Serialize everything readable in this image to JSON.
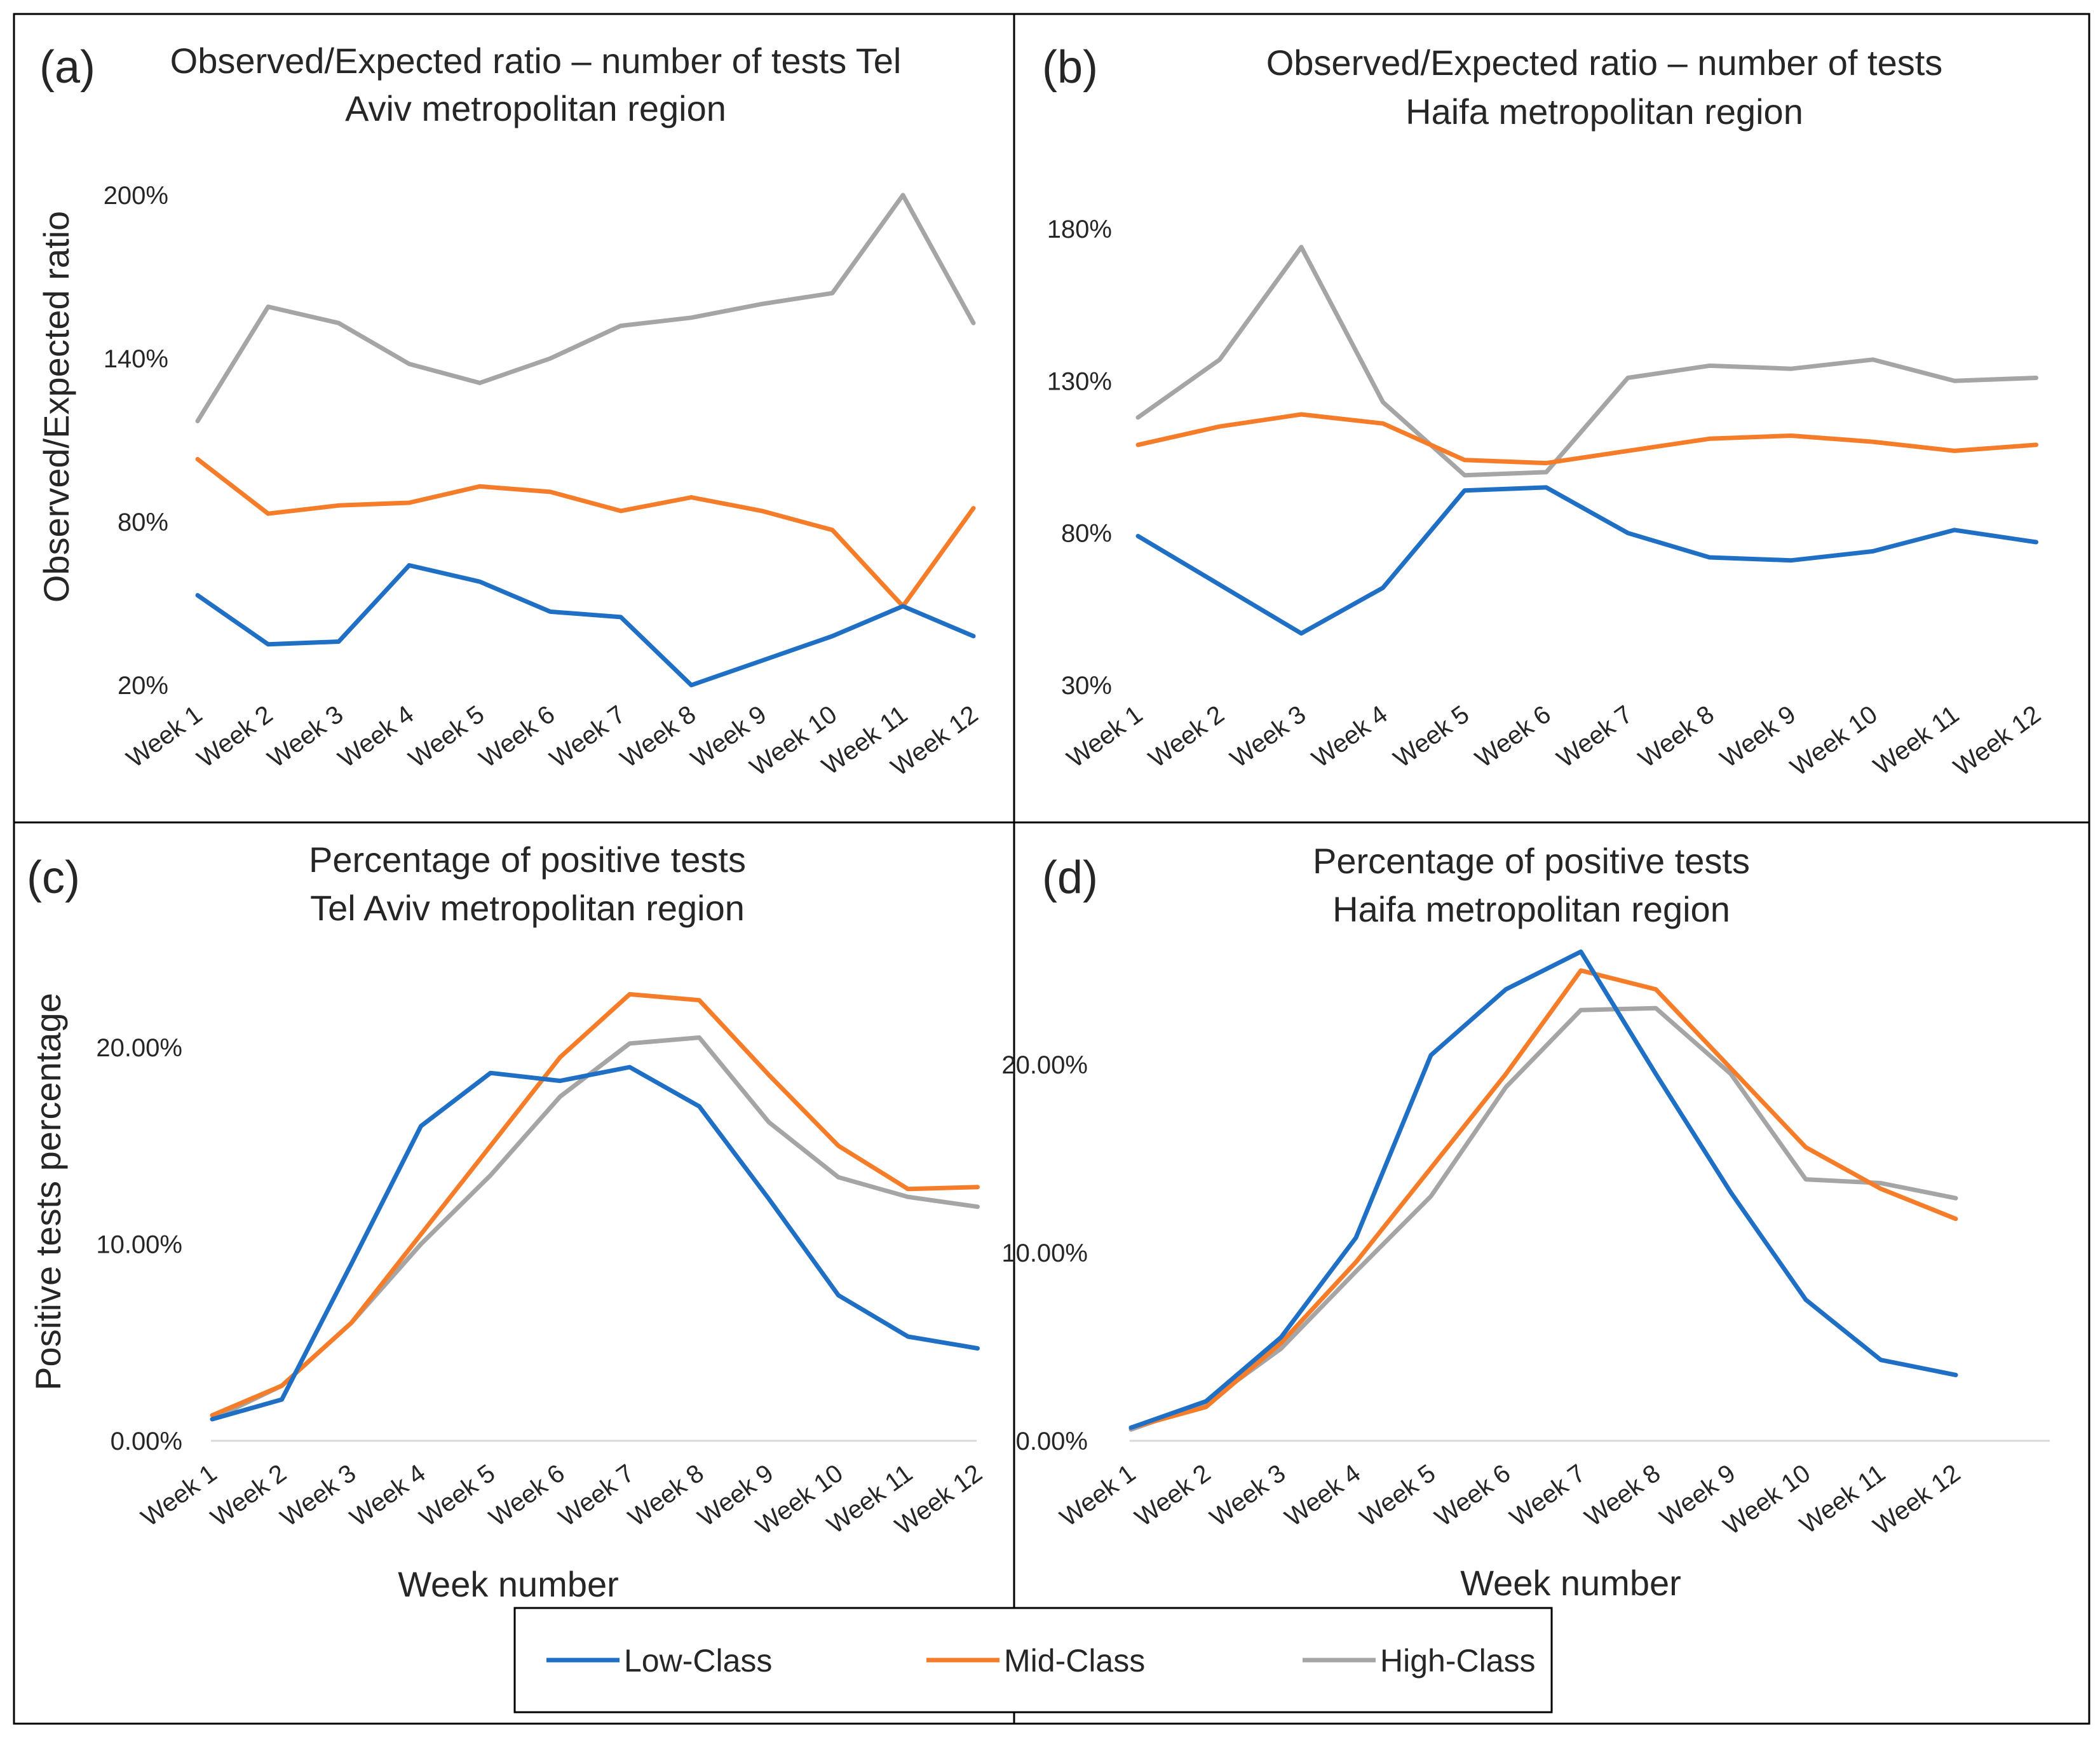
{
  "chart_data": [
    {
      "id": "a",
      "type": "line",
      "letter": "(a)",
      "title_lines": [
        "Observed/Expected ratio – number of tests Tel",
        "Aviv metropolitan region"
      ],
      "xlabel": "",
      "ylabel": "Observed/Expected ratio",
      "categories": [
        "Week 1",
        "Week 2",
        "Week 3",
        "Week 4",
        "Week 5",
        "Week 6",
        "Week 7",
        "Week 8",
        "Week 9",
        "Week 10",
        "Week 11",
        "Week 12"
      ],
      "yticks": [
        20,
        80,
        140,
        200
      ],
      "ytick_labels": [
        "20%",
        "80%",
        "140%",
        "200%"
      ],
      "ylim": [
        20,
        200
      ],
      "series": [
        {
          "name": "Low-Class",
          "values": [
            53,
            35,
            36,
            64,
            58,
            47,
            45,
            20,
            29,
            38,
            49,
            38
          ]
        },
        {
          "name": "Mid-Class",
          "values": [
            103,
            83,
            86,
            87,
            93,
            91,
            84,
            89,
            84,
            77,
            49,
            85
          ]
        },
        {
          "name": "High-Class",
          "values": [
            117,
            159,
            153,
            138,
            131,
            140,
            152,
            155,
            160,
            164,
            200,
            153
          ]
        }
      ]
    },
    {
      "id": "b",
      "type": "line",
      "letter": "(b)",
      "title_lines": [
        "Observed/Expected ratio – number of tests",
        "Haifa metropolitan region"
      ],
      "xlabel": "",
      "ylabel": "",
      "categories": [
        "Week 1",
        "Week 2",
        "Week 3",
        "Week 4",
        "Week 5",
        "Week 6",
        "Week 7",
        "Week 8",
        "Week 9",
        "Week 10",
        "Week 11",
        "Week 12"
      ],
      "yticks": [
        30,
        80,
        130,
        180
      ],
      "ytick_labels": [
        "30%",
        "80%",
        "130%",
        "180%"
      ],
      "ylim": [
        30,
        180
      ],
      "series": [
        {
          "name": "Low-Class",
          "values": [
            79,
            63,
            47,
            62,
            94,
            95,
            80,
            72,
            71,
            74,
            81,
            77
          ]
        },
        {
          "name": "Mid-Class",
          "values": [
            109,
            115,
            119,
            116,
            104,
            103,
            107,
            111,
            112,
            110,
            107,
            109
          ]
        },
        {
          "name": "High-Class",
          "values": [
            118,
            137,
            174,
            123,
            99,
            100,
            131,
            135,
            134,
            137,
            130,
            131
          ]
        }
      ]
    },
    {
      "id": "c",
      "type": "line",
      "letter": "(c)",
      "title_lines": [
        "Percentage of positive tests",
        "Tel Aviv metropolitan region"
      ],
      "xlabel": "Week number",
      "ylabel": "Positive tests percentage",
      "categories": [
        "Week 1",
        "Week 2",
        "Week 3",
        "Week 4",
        "Week 5",
        "Week 6",
        "Week 7",
        "Week 8",
        "Week 9",
        "Week 10",
        "Week 11",
        "Week 12"
      ],
      "yticks": [
        0,
        10,
        20
      ],
      "ytick_labels": [
        "0.00%",
        "10.00%",
        "20.00%"
      ],
      "ylim": [
        0,
        20
      ],
      "series": [
        {
          "name": "Low-Class",
          "values": [
            1.1,
            2.1,
            9.0,
            16.0,
            18.7,
            18.3,
            19.0,
            17.0,
            12.3,
            7.4,
            5.3,
            4.7
          ]
        },
        {
          "name": "Mid-Class",
          "values": [
            1.3,
            2.8,
            6.0,
            10.5,
            15.0,
            19.5,
            22.7,
            22.4,
            18.6,
            15.0,
            12.8,
            12.9
          ]
        },
        {
          "name": "High-Class",
          "values": [
            1.1,
            2.8,
            6.0,
            10.0,
            13.5,
            17.5,
            20.2,
            20.5,
            16.2,
            13.4,
            12.4,
            11.9
          ]
        }
      ]
    },
    {
      "id": "d",
      "type": "line",
      "letter": "(d)",
      "title_lines": [
        "Percentage of positive tests",
        "Haifa metropolitan region"
      ],
      "xlabel": "Week number",
      "ylabel": "",
      "categories": [
        "Week 1",
        "Week 2",
        "Week 3",
        "Week 4",
        "Week 5",
        "Week 6",
        "Week 7",
        "Week 8",
        "Week 9",
        "Week 10",
        "Week 11",
        "Week 12"
      ],
      "yticks": [
        0,
        10,
        20
      ],
      "ytick_labels": [
        "0.00%",
        "10.00%",
        "20.00%"
      ],
      "ylim": [
        0,
        20
      ],
      "series": [
        {
          "name": "Low-Class",
          "values": [
            0.7,
            2.1,
            5.5,
            10.8,
            20.5,
            24.0,
            26.0,
            19.5,
            13.2,
            7.5,
            4.3,
            3.5
          ]
        },
        {
          "name": "Mid-Class",
          "values": [
            0.7,
            1.8,
            5.2,
            9.5,
            14.5,
            19.5,
            25.0,
            24.0,
            19.8,
            15.6,
            13.4,
            11.8
          ]
        },
        {
          "name": "High-Class",
          "values": [
            0.6,
            2.0,
            4.9,
            9.0,
            13.0,
            18.8,
            22.9,
            23.0,
            19.5,
            13.9,
            13.7,
            12.9
          ]
        }
      ]
    }
  ],
  "legend": {
    "items": [
      {
        "label": "Low-Class",
        "color": "#1f6fc5"
      },
      {
        "label": "Mid-Class",
        "color": "#f57d2a"
      },
      {
        "label": "High-Class",
        "color": "#a5a5a5"
      }
    ]
  },
  "colors": {
    "Low-Class": "#1f6fc5",
    "Mid-Class": "#f57d2a",
    "High-Class": "#a5a5a5"
  }
}
